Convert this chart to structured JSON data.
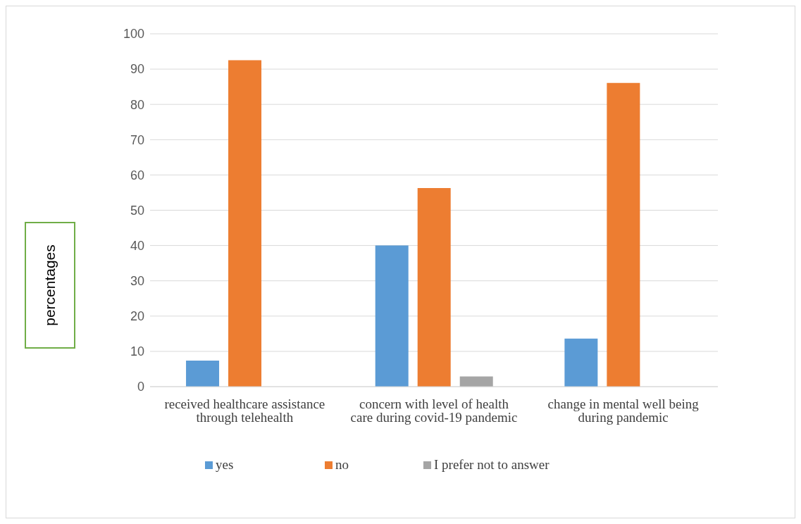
{
  "chart_data": {
    "type": "bar",
    "ylabel": "percentages",
    "categories": [
      "received healthcare assistance through telehealth",
      "concern with level of health care during covid-19 pandemic",
      "change in mental well being during pandemic"
    ],
    "series": [
      {
        "name": "yes",
        "color": "#5b9bd5",
        "values": [
          7.4,
          40.0,
          13.6
        ]
      },
      {
        "name": "no",
        "color": "#ed7d31",
        "values": [
          92.5,
          56.3,
          86.1
        ]
      },
      {
        "name": "I prefer not to answer",
        "color": "#a5a5a5",
        "values": [
          null,
          2.9,
          null
        ]
      }
    ],
    "ylim": [
      0,
      100
    ],
    "yticks": [
      0,
      10,
      20,
      30,
      40,
      50,
      60,
      70,
      80,
      90,
      100
    ],
    "grid": "y",
    "legend": "bottom"
  }
}
